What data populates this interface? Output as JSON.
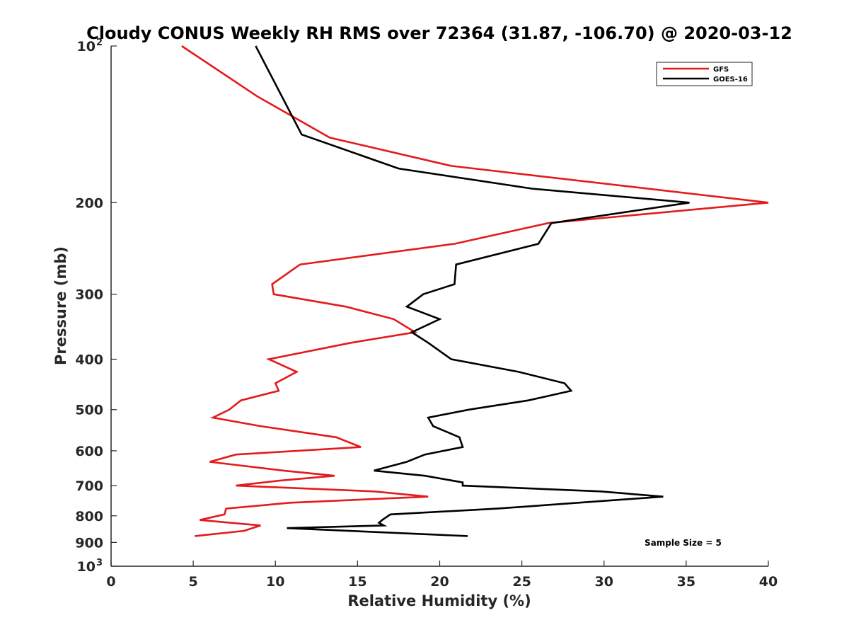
{
  "chart_data": {
    "type": "line",
    "title": "Cloudy CONUS Weekly RH RMS over 72364 (31.87, -106.70) @ 2020-03-12",
    "xlabel": "Relative Humidity (%)",
    "ylabel": "Pressure (mb)",
    "xlim": [
      0,
      40
    ],
    "ylim": [
      100,
      1000
    ],
    "y_scale": "log",
    "y_reversed": true,
    "x_ticks": [
      0,
      5,
      10,
      15,
      20,
      25,
      30,
      35,
      40
    ],
    "y_ticks": [
      {
        "value": 100,
        "label": "10",
        "sup": "2"
      },
      {
        "value": 200,
        "label": "200"
      },
      {
        "value": 300,
        "label": "300"
      },
      {
        "value": 400,
        "label": "400"
      },
      {
        "value": 500,
        "label": "500"
      },
      {
        "value": 600,
        "label": "600"
      },
      {
        "value": 700,
        "label": "700"
      },
      {
        "value": 800,
        "label": "800"
      },
      {
        "value": 900,
        "label": "900"
      },
      {
        "value": 1000,
        "label": "10",
        "sup": "3"
      }
    ],
    "grid": false,
    "legend_position": "top-right",
    "annotation": "Sample Size = 5",
    "series": [
      {
        "name": "GFS",
        "color": "#e41a1c",
        "points": [
          {
            "x": 4.3,
            "y": 100
          },
          {
            "x": 8.9,
            "y": 125
          },
          {
            "x": 13.3,
            "y": 150
          },
          {
            "x": 20.7,
            "y": 170
          },
          {
            "x": 40.0,
            "y": 200
          },
          {
            "x": 26.6,
            "y": 219
          },
          {
            "x": 20.9,
            "y": 240
          },
          {
            "x": 11.5,
            "y": 263
          },
          {
            "x": 9.8,
            "y": 287
          },
          {
            "x": 9.9,
            "y": 300
          },
          {
            "x": 14.3,
            "y": 317
          },
          {
            "x": 17.2,
            "y": 335
          },
          {
            "x": 18.5,
            "y": 355
          },
          {
            "x": 14.6,
            "y": 372
          },
          {
            "x": 9.6,
            "y": 400
          },
          {
            "x": 11.3,
            "y": 423
          },
          {
            "x": 10.0,
            "y": 445
          },
          {
            "x": 10.2,
            "y": 460
          },
          {
            "x": 7.9,
            "y": 480
          },
          {
            "x": 7.2,
            "y": 500
          },
          {
            "x": 6.2,
            "y": 518
          },
          {
            "x": 9.1,
            "y": 538
          },
          {
            "x": 13.7,
            "y": 565
          },
          {
            "x": 15.2,
            "y": 590
          },
          {
            "x": 7.6,
            "y": 610
          },
          {
            "x": 6.0,
            "y": 630
          },
          {
            "x": 10.5,
            "y": 655
          },
          {
            "x": 13.6,
            "y": 670
          },
          {
            "x": 10.2,
            "y": 685
          },
          {
            "x": 7.6,
            "y": 700
          },
          {
            "x": 16.0,
            "y": 718
          },
          {
            "x": 19.3,
            "y": 735
          },
          {
            "x": 10.9,
            "y": 755
          },
          {
            "x": 7.0,
            "y": 775
          },
          {
            "x": 6.9,
            "y": 795
          },
          {
            "x": 5.4,
            "y": 815
          },
          {
            "x": 9.1,
            "y": 835
          },
          {
            "x": 8.1,
            "y": 855
          },
          {
            "x": 5.1,
            "y": 875
          }
        ]
      },
      {
        "name": "GOES-16",
        "color": "#000000",
        "points": [
          {
            "x": 8.8,
            "y": 100
          },
          {
            "x": 11.6,
            "y": 148
          },
          {
            "x": 17.5,
            "y": 172
          },
          {
            "x": 25.6,
            "y": 188
          },
          {
            "x": 35.2,
            "y": 200
          },
          {
            "x": 26.8,
            "y": 219
          },
          {
            "x": 26.0,
            "y": 240
          },
          {
            "x": 21.0,
            "y": 263
          },
          {
            "x": 20.9,
            "y": 287
          },
          {
            "x": 19.0,
            "y": 300
          },
          {
            "x": 18.0,
            "y": 317
          },
          {
            "x": 20.0,
            "y": 335
          },
          {
            "x": 18.3,
            "y": 355
          },
          {
            "x": 19.3,
            "y": 372
          },
          {
            "x": 20.7,
            "y": 400
          },
          {
            "x": 24.8,
            "y": 423
          },
          {
            "x": 27.6,
            "y": 445
          },
          {
            "x": 28.0,
            "y": 460
          },
          {
            "x": 25.4,
            "y": 480
          },
          {
            "x": 21.8,
            "y": 500
          },
          {
            "x": 19.3,
            "y": 518
          },
          {
            "x": 19.6,
            "y": 538
          },
          {
            "x": 21.2,
            "y": 565
          },
          {
            "x": 21.4,
            "y": 590
          },
          {
            "x": 19.1,
            "y": 610
          },
          {
            "x": 18.0,
            "y": 630
          },
          {
            "x": 16.0,
            "y": 655
          },
          {
            "x": 19.1,
            "y": 670
          },
          {
            "x": 21.4,
            "y": 690
          },
          {
            "x": 21.4,
            "y": 700
          },
          {
            "x": 29.8,
            "y": 718
          },
          {
            "x": 33.6,
            "y": 735
          },
          {
            "x": 23.5,
            "y": 775
          },
          {
            "x": 17.0,
            "y": 795
          },
          {
            "x": 16.5,
            "y": 815
          },
          {
            "x": 16.3,
            "y": 825
          },
          {
            "x": 16.6,
            "y": 835
          },
          {
            "x": 10.7,
            "y": 845
          },
          {
            "x": 21.7,
            "y": 875
          }
        ]
      }
    ]
  }
}
